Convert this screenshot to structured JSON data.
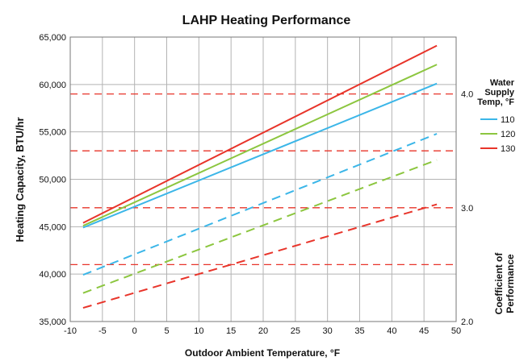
{
  "chart_data": {
    "type": "line",
    "title": "LAHP Heating Performance",
    "xlabel": "Outdoor Ambient Temperature, °F",
    "ylabel": "Heating Capacity, BTU/hr",
    "y2label": "Coefficient of Performance",
    "xlim": [
      -10,
      50
    ],
    "ylim": [
      35000,
      65000
    ],
    "y2lim": [
      2.0,
      4.5
    ],
    "x_ticks": [
      "-10",
      "-5",
      "0",
      "5",
      "10",
      "15",
      "20",
      "25",
      "30",
      "35",
      "40",
      "45",
      "50"
    ],
    "y_ticks": [
      "35,000",
      "40,000",
      "45,000",
      "50,000",
      "55,000",
      "60,000",
      "65,000"
    ],
    "y2_ticks": [
      "2.0",
      "3.0",
      "4.0"
    ],
    "grid": true,
    "legend": {
      "title": "Water Supply Temp, °F",
      "position": "right",
      "entries": [
        "110",
        "120",
        "130"
      ]
    },
    "series": [
      {
        "name": "110",
        "color": "#3bb6e8",
        "axis": "left",
        "style": "solid",
        "x": [
          -8,
          47
        ],
        "y": [
          44900,
          60100
        ]
      },
      {
        "name": "120",
        "color": "#8cc63f",
        "axis": "left",
        "style": "solid",
        "x": [
          -8,
          47
        ],
        "y": [
          45100,
          62100
        ]
      },
      {
        "name": "130",
        "color": "#e8342a",
        "axis": "left",
        "style": "solid",
        "x": [
          -8,
          47
        ],
        "y": [
          45400,
          64100
        ]
      },
      {
        "name": "110",
        "color": "#3bb6e8",
        "axis": "right",
        "style": "dashed",
        "x": [
          -8,
          47
        ],
        "y": [
          2.41,
          3.65
        ]
      },
      {
        "name": "120",
        "color": "#8cc63f",
        "axis": "right",
        "style": "dashed",
        "x": [
          -8,
          47
        ],
        "y": [
          2.25,
          3.42
        ]
      },
      {
        "name": "130",
        "color": "#e8342a",
        "axis": "right",
        "style": "dashed",
        "x": [
          -8,
          47
        ],
        "y": [
          2.12,
          3.03
        ]
      }
    ],
    "reference_lines": [
      {
        "axis": "left",
        "value": 59000,
        "color": "#e8342a",
        "style": "dashed"
      },
      {
        "axis": "left",
        "value": 53000,
        "color": "#e8342a",
        "style": "dashed"
      },
      {
        "axis": "left",
        "value": 47000,
        "color": "#e8342a",
        "style": "dashed"
      },
      {
        "axis": "left",
        "value": 41000,
        "color": "#e8342a",
        "style": "dashed"
      }
    ]
  }
}
